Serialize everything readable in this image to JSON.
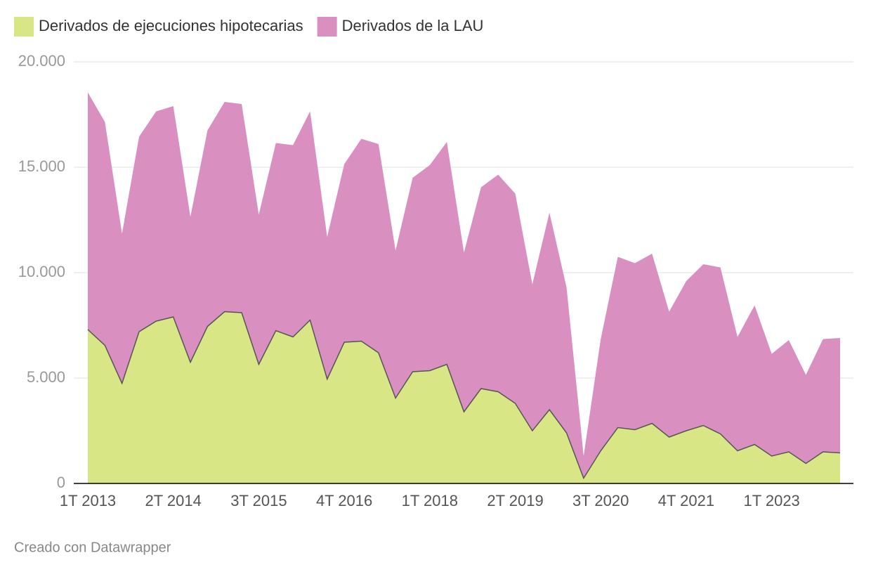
{
  "chart_data": {
    "type": "stacked_area",
    "categories": [
      "1T 2013",
      null,
      null,
      null,
      null,
      "2T 2014",
      null,
      null,
      null,
      null,
      "3T 2015",
      null,
      null,
      null,
      null,
      "4T 2016",
      null,
      null,
      null,
      null,
      "1T 2018",
      null,
      null,
      null,
      null,
      "2T 2019",
      null,
      null,
      null,
      null,
      "3T 2020",
      null,
      null,
      null,
      null,
      "4T 2021",
      null,
      null,
      null,
      null,
      "1T 2023",
      null,
      null,
      null,
      null
    ],
    "series": [
      {
        "name": "Derivados de ejecuciones hipotecarias",
        "color": "#d9e685",
        "values": [
          7300,
          6550,
          4750,
          7200,
          7700,
          7900,
          5750,
          7450,
          8150,
          8100,
          5650,
          7250,
          6950,
          7750,
          4950,
          6700,
          6750,
          6200,
          4050,
          5300,
          5350,
          5650,
          3400,
          4500,
          4350,
          3800,
          2500,
          3500,
          2400,
          250,
          1550,
          2650,
          2550,
          2850,
          2200,
          2500,
          2750,
          2350,
          1550,
          1850,
          1300,
          1500,
          950,
          1500,
          1450
        ]
      },
      {
        "name": "Derivados de la LAU",
        "color": "#d990c0",
        "values": [
          11250,
          10600,
          7100,
          9250,
          9950,
          10000,
          6900,
          9300,
          9950,
          9900,
          7100,
          8900,
          9100,
          9900,
          6750,
          8450,
          9600,
          9900,
          7000,
          9200,
          9750,
          10550,
          7550,
          9550,
          10300,
          9950,
          6950,
          9350,
          6900,
          1050,
          5300,
          8100,
          7900,
          8050,
          5950,
          7100,
          7650,
          7900,
          5400,
          6600,
          4850,
          5300,
          4200,
          5350,
          5450
        ]
      }
    ],
    "ylim": [
      0,
      20000
    ],
    "yticks": [
      0,
      {
        "value": 5000,
        "label": "5.000"
      },
      {
        "value": 10000,
        "label": "10.000"
      },
      {
        "value": 15000,
        "label": "15.000"
      },
      {
        "value": 20000,
        "label": "20.000"
      }
    ],
    "grid": true,
    "source": "Creado con Datawrapper"
  }
}
